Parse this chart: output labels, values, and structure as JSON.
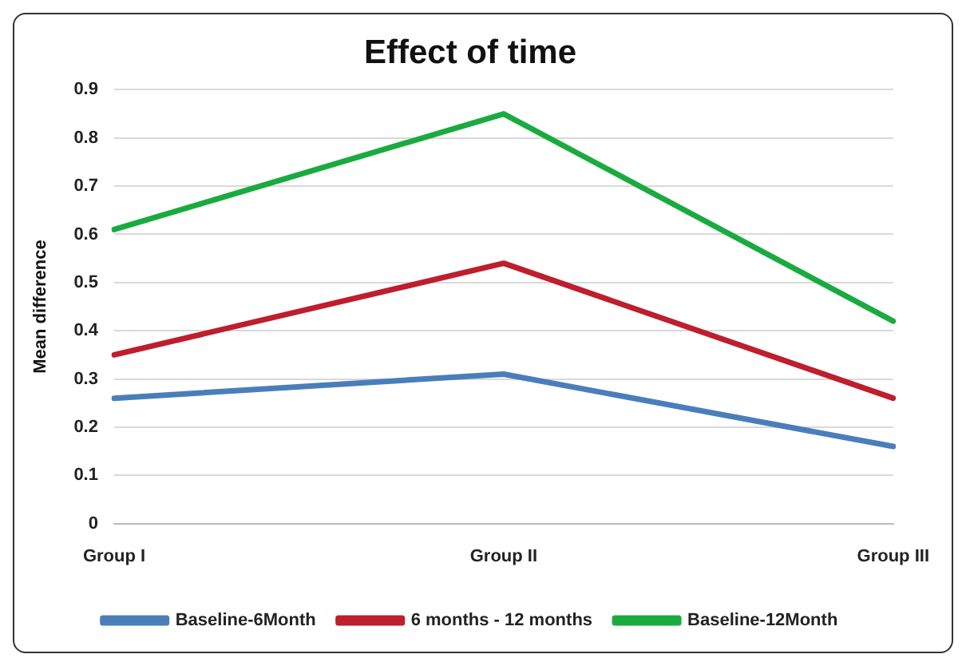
{
  "chart_data": {
    "type": "line",
    "title": "Effect of time",
    "ylabel": "Mean difference",
    "categories": [
      "Group I",
      "Group II",
      "Group III"
    ],
    "series": [
      {
        "name": "Baseline-6Month",
        "color": "#4a7ebb",
        "values": [
          0.26,
          0.31,
          0.16
        ]
      },
      {
        "name": "6 months - 12 months",
        "color": "#be1e2d",
        "values": [
          0.35,
          0.54,
          0.26
        ]
      },
      {
        "name": "Baseline-12Month",
        "color": "#1aab40",
        "values": [
          0.61,
          0.85,
          0.42
        ]
      }
    ],
    "ylim": [
      0,
      0.9
    ],
    "yticks": [
      0,
      0.1,
      0.2,
      0.3,
      0.4,
      0.5,
      0.6,
      0.7,
      0.8,
      0.9
    ],
    "grid": "y",
    "legend": "bottom",
    "marker": "none",
    "line_style": "solid"
  }
}
